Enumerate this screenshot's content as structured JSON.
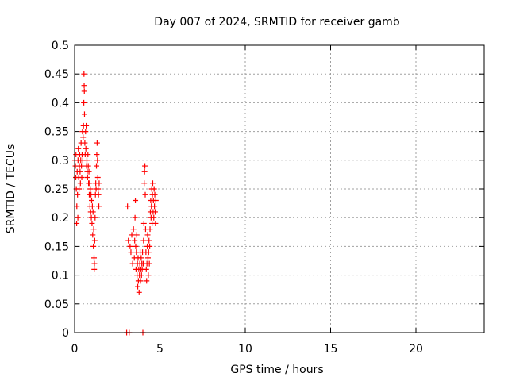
{
  "chart_data": {
    "type": "scatter",
    "title": "Day 007 of 2024, SRMTID for receiver gamb",
    "xlabel": "GPS time / hours",
    "ylabel": "SRMTID / TECUs",
    "xlim": [
      0,
      24
    ],
    "ylim": [
      0,
      0.5
    ],
    "grid": true,
    "marker": "+",
    "marker_color": "#ff0000",
    "x_ticks": [
      0,
      5,
      10,
      15,
      20
    ],
    "y_ticks": [
      0,
      0.05,
      0.1,
      0.15,
      0.2,
      0.25,
      0.3,
      0.35,
      0.4,
      0.45,
      0.5
    ],
    "x_tick_labels": [
      "0",
      "5",
      "10",
      "15",
      "20"
    ],
    "y_tick_labels": [
      "0",
      "0.05",
      "0.1",
      "0.15",
      "0.2",
      "0.25",
      "0.3",
      "0.35",
      "0.4",
      "0.45",
      "0.5"
    ],
    "series": [
      {
        "values": [
          [
            0.02,
            0.3
          ],
          [
            0.05,
            0.29
          ],
          [
            0.07,
            0.27
          ],
          [
            0.08,
            0.31
          ],
          [
            0.1,
            0.25
          ],
          [
            0.12,
            0.19
          ],
          [
            0.13,
            0.22
          ],
          [
            0.15,
            0.28
          ],
          [
            0.17,
            0.24
          ],
          [
            0.19,
            0.2
          ],
          [
            0.2,
            0.3
          ],
          [
            0.22,
            0.32
          ],
          [
            0.24,
            0.27
          ],
          [
            0.26,
            0.25
          ],
          [
            0.28,
            0.29
          ],
          [
            0.3,
            0.31
          ],
          [
            0.32,
            0.28
          ],
          [
            0.34,
            0.26
          ],
          [
            0.36,
            0.3
          ],
          [
            0.38,
            0.33
          ],
          [
            0.4,
            0.29
          ],
          [
            0.42,
            0.27
          ],
          [
            0.44,
            0.31
          ],
          [
            0.46,
            0.35
          ],
          [
            0.48,
            0.3
          ],
          [
            0.5,
            0.34
          ],
          [
            0.52,
            0.36
          ],
          [
            0.54,
            0.4
          ],
          [
            0.55,
            0.45
          ],
          [
            0.56,
            0.43
          ],
          [
            0.57,
            0.42
          ],
          [
            0.58,
            0.38
          ],
          [
            0.6,
            0.33
          ],
          [
            0.62,
            0.31
          ],
          [
            0.64,
            0.35
          ],
          [
            0.66,
            0.32
          ],
          [
            0.68,
            0.36
          ],
          [
            0.7,
            0.29
          ],
          [
            0.72,
            0.3
          ],
          [
            0.74,
            0.28
          ],
          [
            0.76,
            0.27
          ],
          [
            0.78,
            0.31
          ],
          [
            0.8,
            0.29
          ],
          [
            0.82,
            0.26
          ],
          [
            0.84,
            0.28
          ],
          [
            0.86,
            0.24
          ],
          [
            0.88,
            0.26
          ],
          [
            0.9,
            0.22
          ],
          [
            0.92,
            0.25
          ],
          [
            0.94,
            0.21
          ],
          [
            0.96,
            0.24
          ],
          [
            0.98,
            0.2
          ],
          [
            1.0,
            0.23
          ],
          [
            1.02,
            0.19
          ],
          [
            1.04,
            0.22
          ],
          [
            1.06,
            0.17
          ],
          [
            1.08,
            0.21
          ],
          [
            1.1,
            0.15
          ],
          [
            1.12,
            0.18
          ],
          [
            1.14,
            0.13
          ],
          [
            1.15,
            0.11
          ],
          [
            1.16,
            0.12
          ],
          [
            1.18,
            0.16
          ],
          [
            1.2,
            0.2
          ],
          [
            1.22,
            0.24
          ],
          [
            1.24,
            0.26
          ],
          [
            1.26,
            0.25
          ],
          [
            1.28,
            0.29
          ],
          [
            1.3,
            0.31
          ],
          [
            1.32,
            0.33
          ],
          [
            1.34,
            0.3
          ],
          [
            1.36,
            0.27
          ],
          [
            1.38,
            0.25
          ],
          [
            1.4,
            0.24
          ],
          [
            1.42,
            0.22
          ],
          [
            1.44,
            0.26
          ],
          [
            3.05,
            0.0
          ],
          [
            3.1,
            0.22
          ],
          [
            3.15,
            0.16
          ],
          [
            3.2,
            0.0
          ],
          [
            3.25,
            0.15
          ],
          [
            3.3,
            0.14
          ],
          [
            3.35,
            0.17
          ],
          [
            3.4,
            0.12
          ],
          [
            3.45,
            0.18
          ],
          [
            3.5,
            0.13
          ],
          [
            3.52,
            0.16
          ],
          [
            3.54,
            0.2
          ],
          [
            3.56,
            0.23
          ],
          [
            3.58,
            0.15
          ],
          [
            3.6,
            0.11
          ],
          [
            3.62,
            0.14
          ],
          [
            3.64,
            0.17
          ],
          [
            3.66,
            0.1
          ],
          [
            3.68,
            0.12
          ],
          [
            3.7,
            0.08
          ],
          [
            3.72,
            0.13
          ],
          [
            3.74,
            0.09
          ],
          [
            3.76,
            0.11
          ],
          [
            3.78,
            0.07
          ],
          [
            3.8,
            0.1
          ],
          [
            3.82,
            0.12
          ],
          [
            3.84,
            0.14
          ],
          [
            3.86,
            0.09
          ],
          [
            3.88,
            0.11
          ],
          [
            3.9,
            0.13
          ],
          [
            3.92,
            0.1
          ],
          [
            3.94,
            0.12
          ],
          [
            3.96,
            0.11
          ],
          [
            3.98,
            0.14
          ],
          [
            4.0,
            0.0
          ],
          [
            4.02,
            0.12
          ],
          [
            4.04,
            0.16
          ],
          [
            4.06,
            0.19
          ],
          [
            4.08,
            0.26
          ],
          [
            4.1,
            0.28
          ],
          [
            4.12,
            0.29
          ],
          [
            4.14,
            0.24
          ],
          [
            4.16,
            0.18
          ],
          [
            4.18,
            0.14
          ],
          [
            4.2,
            0.11
          ],
          [
            4.22,
            0.09
          ],
          [
            4.24,
            0.12
          ],
          [
            4.26,
            0.15
          ],
          [
            4.28,
            0.17
          ],
          [
            4.3,
            0.13
          ],
          [
            4.32,
            0.1
          ],
          [
            4.34,
            0.14
          ],
          [
            4.36,
            0.16
          ],
          [
            4.38,
            0.12
          ],
          [
            4.4,
            0.15
          ],
          [
            4.42,
            0.18
          ],
          [
            4.44,
            0.21
          ],
          [
            4.46,
            0.23
          ],
          [
            4.48,
            0.2
          ],
          [
            4.5,
            0.22
          ],
          [
            4.52,
            0.25
          ],
          [
            4.54,
            0.19
          ],
          [
            4.56,
            0.24
          ],
          [
            4.58,
            0.26
          ],
          [
            4.6,
            0.21
          ],
          [
            4.62,
            0.23
          ],
          [
            4.64,
            0.2
          ],
          [
            4.66,
            0.25
          ],
          [
            4.68,
            0.22
          ],
          [
            4.7,
            0.24
          ],
          [
            4.72,
            0.21
          ],
          [
            4.74,
            0.19
          ],
          [
            4.76,
            0.23
          ]
        ]
      }
    ]
  }
}
